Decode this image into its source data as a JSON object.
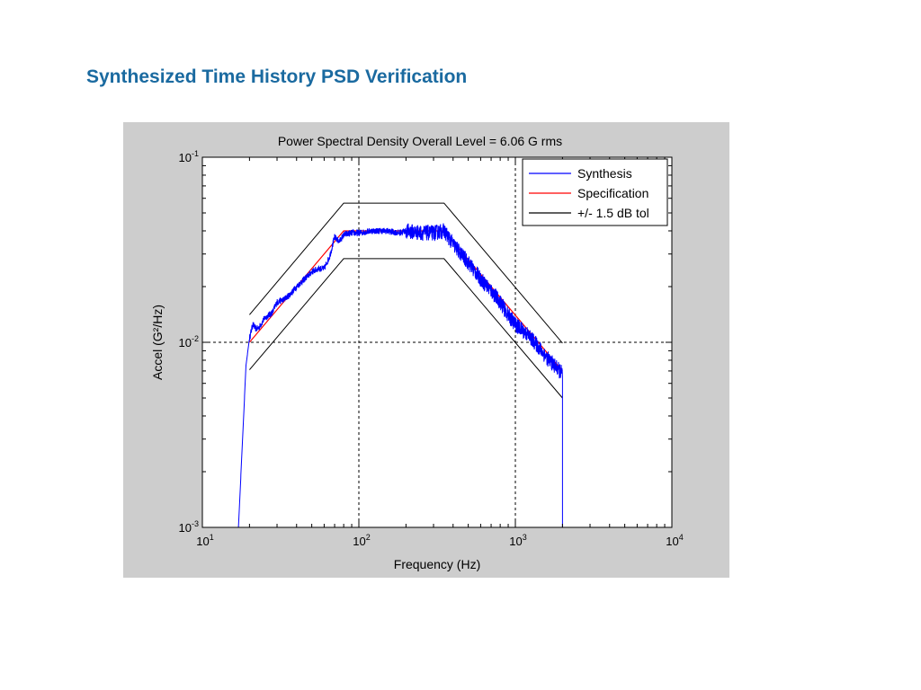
{
  "slide": {
    "title": "Synthesized Time History PSD Verification"
  },
  "colors": {
    "title": "#1a6aa0",
    "figure_background": "#cdcdcd",
    "axes_background": "#ffffff",
    "synthesis": "#0000ff",
    "specification": "#ff0000",
    "tolerance": "#000000"
  },
  "chart_data": {
    "type": "line",
    "title": "Power Spectral Density  Overall Level =    6.06 G rms",
    "xlabel": "Frequency (Hz)",
    "ylabel": "Accel (G²/Hz)",
    "xscale": "log",
    "yscale": "log",
    "xlim": [
      10,
      10000
    ],
    "ylim": [
      0.001,
      0.1
    ],
    "x_ticks": [
      {
        "base": "10",
        "exp": "1"
      },
      {
        "base": "10",
        "exp": "2"
      },
      {
        "base": "10",
        "exp": "3"
      },
      {
        "base": "10",
        "exp": "4"
      }
    ],
    "y_ticks": [
      {
        "base": "10",
        "exp": "-3"
      },
      {
        "base": "10",
        "exp": "-2"
      },
      {
        "base": "10",
        "exp": "-1"
      }
    ],
    "grid": "dotted major lines at 10^2 and 10^3 Hz and 10^-2 G²/Hz",
    "legend_position": "top-right",
    "series": [
      {
        "name": "Synthesis",
        "color": "#0000ff",
        "x": [
          17,
          18,
          19,
          20,
          21,
          22,
          23,
          25,
          28,
          30,
          33,
          36,
          40,
          45,
          50,
          55,
          60,
          65,
          70,
          75,
          80,
          90,
          100,
          120,
          150,
          180,
          200,
          250,
          300,
          350,
          400,
          450,
          500,
          600,
          700,
          800,
          900,
          1000,
          1200,
          1400,
          1600,
          1800,
          1990,
          2000,
          2000
        ],
        "y": [
          0.001,
          0.0028,
          0.0075,
          0.0105,
          0.0125,
          0.0118,
          0.012,
          0.0135,
          0.0145,
          0.0165,
          0.017,
          0.018,
          0.02,
          0.022,
          0.024,
          0.025,
          0.025,
          0.029,
          0.037,
          0.035,
          0.038,
          0.039,
          0.039,
          0.04,
          0.04,
          0.039,
          0.04,
          0.039,
          0.039,
          0.04,
          0.034,
          0.03,
          0.027,
          0.022,
          0.019,
          0.0165,
          0.014,
          0.0125,
          0.011,
          0.0095,
          0.0082,
          0.0074,
          0.0068,
          0.0065,
          0.001
        ]
      },
      {
        "name": "Specification",
        "color": "#ff0000",
        "x": [
          20,
          80,
          350,
          2000
        ],
        "y": [
          0.01,
          0.04,
          0.04,
          0.007
        ]
      },
      {
        "name": "+/- 1.5 dB tol",
        "color": "#000000",
        "segments": [
          {
            "x": [
              20,
              80,
              350,
              2000
            ],
            "y": [
              0.0141,
              0.0565,
              0.0565,
              0.0099
            ]
          },
          {
            "x": [
              20,
              80,
              350,
              2000
            ],
            "y": [
              0.0071,
              0.0283,
              0.0283,
              0.005
            ]
          }
        ]
      }
    ]
  }
}
